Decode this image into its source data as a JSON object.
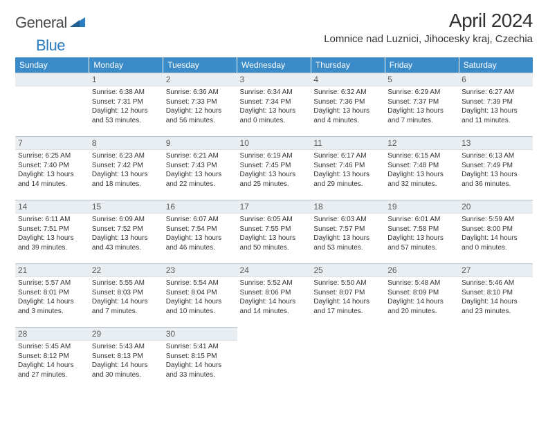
{
  "logo": {
    "part1": "General",
    "part2": "Blue"
  },
  "title": "April 2024",
  "location": "Lomnice nad Luznici, Jihocesky kraj, Czechia",
  "colors": {
    "header_bg": "#3b8bc9",
    "header_text": "#ffffff",
    "daynum_bg": "#e9eef2",
    "daynum_border": "#b8c2cc",
    "body_text": "#333333",
    "logo_gray": "#4a4a4a",
    "logo_blue": "#2a7cbf"
  },
  "weekdays": [
    "Sunday",
    "Monday",
    "Tuesday",
    "Wednesday",
    "Thursday",
    "Friday",
    "Saturday"
  ],
  "weeks": [
    [
      null,
      {
        "n": "1",
        "sr": "Sunrise: 6:38 AM",
        "ss": "Sunset: 7:31 PM",
        "dl1": "Daylight: 12 hours",
        "dl2": "and 53 minutes."
      },
      {
        "n": "2",
        "sr": "Sunrise: 6:36 AM",
        "ss": "Sunset: 7:33 PM",
        "dl1": "Daylight: 12 hours",
        "dl2": "and 56 minutes."
      },
      {
        "n": "3",
        "sr": "Sunrise: 6:34 AM",
        "ss": "Sunset: 7:34 PM",
        "dl1": "Daylight: 13 hours",
        "dl2": "and 0 minutes."
      },
      {
        "n": "4",
        "sr": "Sunrise: 6:32 AM",
        "ss": "Sunset: 7:36 PM",
        "dl1": "Daylight: 13 hours",
        "dl2": "and 4 minutes."
      },
      {
        "n": "5",
        "sr": "Sunrise: 6:29 AM",
        "ss": "Sunset: 7:37 PM",
        "dl1": "Daylight: 13 hours",
        "dl2": "and 7 minutes."
      },
      {
        "n": "6",
        "sr": "Sunrise: 6:27 AM",
        "ss": "Sunset: 7:39 PM",
        "dl1": "Daylight: 13 hours",
        "dl2": "and 11 minutes."
      }
    ],
    [
      {
        "n": "7",
        "sr": "Sunrise: 6:25 AM",
        "ss": "Sunset: 7:40 PM",
        "dl1": "Daylight: 13 hours",
        "dl2": "and 14 minutes."
      },
      {
        "n": "8",
        "sr": "Sunrise: 6:23 AM",
        "ss": "Sunset: 7:42 PM",
        "dl1": "Daylight: 13 hours",
        "dl2": "and 18 minutes."
      },
      {
        "n": "9",
        "sr": "Sunrise: 6:21 AM",
        "ss": "Sunset: 7:43 PM",
        "dl1": "Daylight: 13 hours",
        "dl2": "and 22 minutes."
      },
      {
        "n": "10",
        "sr": "Sunrise: 6:19 AM",
        "ss": "Sunset: 7:45 PM",
        "dl1": "Daylight: 13 hours",
        "dl2": "and 25 minutes."
      },
      {
        "n": "11",
        "sr": "Sunrise: 6:17 AM",
        "ss": "Sunset: 7:46 PM",
        "dl1": "Daylight: 13 hours",
        "dl2": "and 29 minutes."
      },
      {
        "n": "12",
        "sr": "Sunrise: 6:15 AM",
        "ss": "Sunset: 7:48 PM",
        "dl1": "Daylight: 13 hours",
        "dl2": "and 32 minutes."
      },
      {
        "n": "13",
        "sr": "Sunrise: 6:13 AM",
        "ss": "Sunset: 7:49 PM",
        "dl1": "Daylight: 13 hours",
        "dl2": "and 36 minutes."
      }
    ],
    [
      {
        "n": "14",
        "sr": "Sunrise: 6:11 AM",
        "ss": "Sunset: 7:51 PM",
        "dl1": "Daylight: 13 hours",
        "dl2": "and 39 minutes."
      },
      {
        "n": "15",
        "sr": "Sunrise: 6:09 AM",
        "ss": "Sunset: 7:52 PM",
        "dl1": "Daylight: 13 hours",
        "dl2": "and 43 minutes."
      },
      {
        "n": "16",
        "sr": "Sunrise: 6:07 AM",
        "ss": "Sunset: 7:54 PM",
        "dl1": "Daylight: 13 hours",
        "dl2": "and 46 minutes."
      },
      {
        "n": "17",
        "sr": "Sunrise: 6:05 AM",
        "ss": "Sunset: 7:55 PM",
        "dl1": "Daylight: 13 hours",
        "dl2": "and 50 minutes."
      },
      {
        "n": "18",
        "sr": "Sunrise: 6:03 AM",
        "ss": "Sunset: 7:57 PM",
        "dl1": "Daylight: 13 hours",
        "dl2": "and 53 minutes."
      },
      {
        "n": "19",
        "sr": "Sunrise: 6:01 AM",
        "ss": "Sunset: 7:58 PM",
        "dl1": "Daylight: 13 hours",
        "dl2": "and 57 minutes."
      },
      {
        "n": "20",
        "sr": "Sunrise: 5:59 AM",
        "ss": "Sunset: 8:00 PM",
        "dl1": "Daylight: 14 hours",
        "dl2": "and 0 minutes."
      }
    ],
    [
      {
        "n": "21",
        "sr": "Sunrise: 5:57 AM",
        "ss": "Sunset: 8:01 PM",
        "dl1": "Daylight: 14 hours",
        "dl2": "and 3 minutes."
      },
      {
        "n": "22",
        "sr": "Sunrise: 5:55 AM",
        "ss": "Sunset: 8:03 PM",
        "dl1": "Daylight: 14 hours",
        "dl2": "and 7 minutes."
      },
      {
        "n": "23",
        "sr": "Sunrise: 5:54 AM",
        "ss": "Sunset: 8:04 PM",
        "dl1": "Daylight: 14 hours",
        "dl2": "and 10 minutes."
      },
      {
        "n": "24",
        "sr": "Sunrise: 5:52 AM",
        "ss": "Sunset: 8:06 PM",
        "dl1": "Daylight: 14 hours",
        "dl2": "and 14 minutes."
      },
      {
        "n": "25",
        "sr": "Sunrise: 5:50 AM",
        "ss": "Sunset: 8:07 PM",
        "dl1": "Daylight: 14 hours",
        "dl2": "and 17 minutes."
      },
      {
        "n": "26",
        "sr": "Sunrise: 5:48 AM",
        "ss": "Sunset: 8:09 PM",
        "dl1": "Daylight: 14 hours",
        "dl2": "and 20 minutes."
      },
      {
        "n": "27",
        "sr": "Sunrise: 5:46 AM",
        "ss": "Sunset: 8:10 PM",
        "dl1": "Daylight: 14 hours",
        "dl2": "and 23 minutes."
      }
    ],
    [
      {
        "n": "28",
        "sr": "Sunrise: 5:45 AM",
        "ss": "Sunset: 8:12 PM",
        "dl1": "Daylight: 14 hours",
        "dl2": "and 27 minutes."
      },
      {
        "n": "29",
        "sr": "Sunrise: 5:43 AM",
        "ss": "Sunset: 8:13 PM",
        "dl1": "Daylight: 14 hours",
        "dl2": "and 30 minutes."
      },
      {
        "n": "30",
        "sr": "Sunrise: 5:41 AM",
        "ss": "Sunset: 8:15 PM",
        "dl1": "Daylight: 14 hours",
        "dl2": "and 33 minutes."
      },
      null,
      null,
      null,
      null
    ]
  ]
}
